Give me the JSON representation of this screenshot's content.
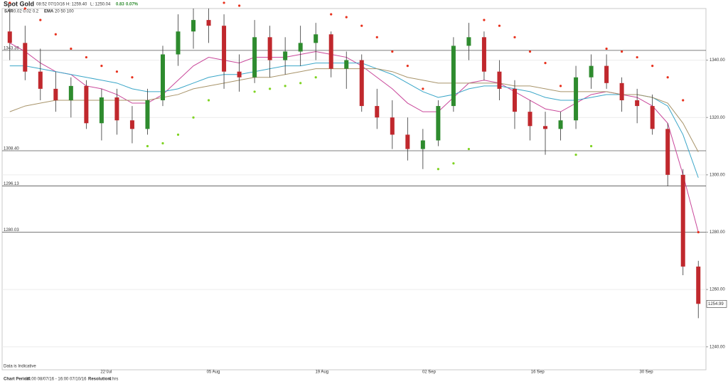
{
  "chart_data": {
    "type": "candlestick",
    "title": "Spot Gold",
    "header": {
      "time": "08:52 07/10/16",
      "high": "H: 1259.40",
      "low": "L: 1250.04",
      "change": "0.83",
      "change_pct": "0.07%"
    },
    "indicators": {
      "sar": "SAR",
      "sar_params": "0.02  0.02  0.2",
      "ema": "EMA",
      "ema_params": "20  50  100"
    },
    "footer": {
      "note": "Data is Indicative",
      "period_label": "Chart Period:",
      "period": "04:00 08/07/16 - 16:00 07/10/16",
      "resolution_label": "Resolution:",
      "resolution": "4 hrs"
    },
    "up_color": "#2e8b2e",
    "down_color": "#c0282d",
    "open": [
      1350,
      1346,
      1336,
      1330,
      1326,
      1331,
      1318,
      1327,
      1319,
      1316,
      1326,
      1342,
      1350,
      1354,
      1352,
      1336,
      1334,
      1348,
      1340,
      1343,
      1346,
      1349,
      1337,
      1340,
      1324,
      1320,
      1314,
      1309,
      1312,
      1324,
      1345,
      1348,
      1336,
      1330,
      1322,
      1317,
      1316,
      1319,
      1334,
      1338,
      1332,
      1326,
      1324,
      1316,
      1300,
      1268
    ],
    "high": [
      1358,
      1352,
      1344,
      1336,
      1334,
      1333,
      1330,
      1330,
      1324,
      1330,
      1345,
      1356,
      1358,
      1358,
      1356,
      1342,
      1354,
      1352,
      1348,
      1352,
      1353,
      1350,
      1343,
      1342,
      1330,
      1326,
      1320,
      1316,
      1326,
      1348,
      1353,
      1350,
      1340,
      1333,
      1326,
      1322,
      1322,
      1338,
      1342,
      1342,
      1334,
      1330,
      1328,
      1318,
      1302,
      1270
    ],
    "low": [
      1340,
      1333,
      1326,
      1322,
      1320,
      1316,
      1312,
      1314,
      1311,
      1314,
      1324,
      1338,
      1344,
      1346,
      1330,
      1329,
      1332,
      1334,
      1335,
      1338,
      1340,
      1334,
      1330,
      1322,
      1316,
      1309,
      1305,
      1302,
      1310,
      1322,
      1340,
      1333,
      1326,
      1316,
      1312,
      1307,
      1312,
      1316,
      1330,
      1330,
      1322,
      1318,
      1314,
      1296,
      1265,
      1250
    ],
    "close": [
      1346,
      1336,
      1330,
      1326,
      1331,
      1318,
      1327,
      1319,
      1316,
      1326,
      1342,
      1350,
      1354,
      1352,
      1336,
      1334,
      1348,
      1340,
      1343,
      1346,
      1349,
      1337,
      1340,
      1324,
      1320,
      1314,
      1309,
      1312,
      1324,
      1345,
      1348,
      1336,
      1330,
      1322,
      1317,
      1316,
      1319,
      1334,
      1338,
      1332,
      1326,
      1324,
      1316,
      1300,
      1268,
      1255
    ],
    "sar": {
      "up_color": "#7ed321",
      "down_color": "#e8301c",
      "values": [
        1360,
        1358,
        1354,
        1349,
        1344,
        1341,
        1338,
        1336,
        1334,
        1310,
        1311,
        1314,
        1320,
        1326,
        1360,
        1359,
        1329,
        1330,
        1331,
        1332,
        1334,
        1356,
        1355,
        1352,
        1348,
        1343,
        1338,
        1330,
        1302,
        1304,
        1309,
        1354,
        1352,
        1348,
        1343,
        1339,
        1331,
        1307,
        1310,
        1344,
        1343,
        1341,
        1338,
        1334,
        1326,
        1280
      ]
    },
    "series": [
      {
        "color": "#c9479a",
        "values": [
          1346,
          1343,
          1339,
          1336,
          1335,
          1331,
          1330,
          1328,
          1325,
          1325,
          1328,
          1333,
          1338,
          1341,
          1340,
          1339,
          1341,
          1341,
          1341,
          1342,
          1343,
          1342,
          1341,
          1338,
          1334,
          1330,
          1325,
          1322,
          1322,
          1327,
          1332,
          1333,
          1332,
          1329,
          1326,
          1323,
          1322,
          1325,
          1328,
          1329,
          1328,
          1327,
          1324,
          1318,
          1300,
          1280
        ]
      },
      {
        "color": "#3aa6c8",
        "values": [
          1338,
          1338,
          1337,
          1336,
          1335,
          1334,
          1333,
          1332,
          1330,
          1329,
          1329,
          1330,
          1332,
          1334,
          1335,
          1335,
          1336,
          1337,
          1338,
          1338,
          1339,
          1339,
          1339,
          1339,
          1337,
          1335,
          1332,
          1329,
          1327,
          1328,
          1330,
          1331,
          1331,
          1330,
          1329,
          1327,
          1326,
          1326,
          1327,
          1328,
          1328,
          1328,
          1327,
          1324,
          1314,
          1299
        ]
      },
      {
        "color": "#a8946a",
        "values": [
          1322,
          1324,
          1325,
          1326,
          1326,
          1326,
          1326,
          1326,
          1326,
          1326,
          1327,
          1328,
          1330,
          1331,
          1332,
          1333,
          1334,
          1334,
          1335,
          1336,
          1337,
          1337,
          1337,
          1337,
          1337,
          1336,
          1334,
          1333,
          1332,
          1332,
          1332,
          1332,
          1332,
          1331,
          1331,
          1330,
          1329,
          1329,
          1329,
          1329,
          1328,
          1328,
          1327,
          1325,
          1318,
          1308
        ]
      }
    ],
    "levels": [
      1343.39,
      {
        "value": 1308.4,
        "label": "1308.40"
      },
      1296.13,
      1280.03
    ],
    "last_price": 1254.99,
    "xlim": [
      -0.5,
      45.5
    ],
    "xticks": [
      {
        "value": 6.3,
        "label": "22 Jul"
      },
      {
        "value": 13.3,
        "label": "05 Aug"
      },
      {
        "value": 20.4,
        "label": "19 Aug"
      },
      {
        "value": 27.4,
        "label": "02 Sep"
      },
      {
        "value": 34.5,
        "label": "16 Sep"
      },
      {
        "value": 41.6,
        "label": "30 Sep"
      }
    ],
    "ylim": [
      1232,
      1358
    ],
    "yticks": [
      {
        "value": 1240,
        "label": "1240.00"
      },
      {
        "value": 1260,
        "label": "1260.00"
      },
      {
        "value": 1280,
        "label": "1280.00"
      },
      {
        "value": 1300,
        "label": "1300.00"
      },
      {
        "value": 1320,
        "label": "1320.00"
      },
      {
        "value": 1340,
        "label": "1340.00"
      }
    ],
    "grid": true
  }
}
